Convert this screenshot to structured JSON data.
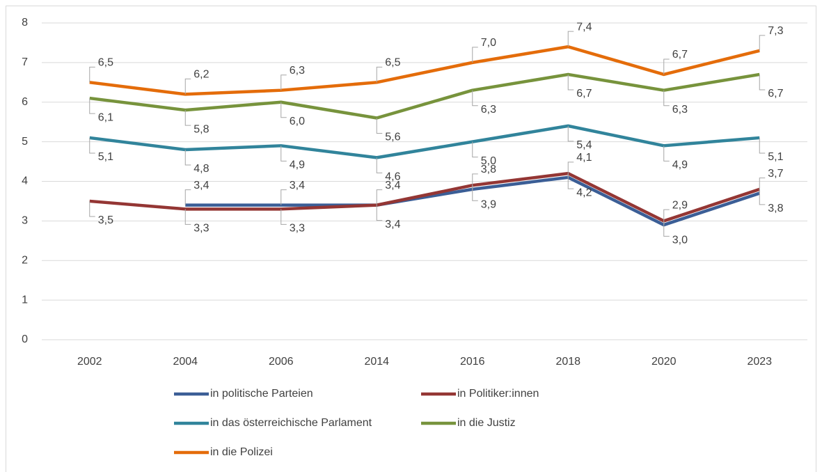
{
  "chart_data": {
    "type": "line",
    "categories": [
      "2002",
      "2004",
      "2006",
      "2014",
      "2016",
      "2018",
      "2020",
      "2023"
    ],
    "ylim": [
      0,
      8
    ],
    "yticks": [
      0,
      1,
      2,
      3,
      4,
      5,
      6,
      7,
      8
    ],
    "grid": true,
    "legend": "bottom",
    "series": [
      {
        "name": "in politische Parteien",
        "color": "#3b5e96",
        "values": [
          null,
          3.4,
          3.4,
          3.4,
          3.8,
          4.1,
          2.9,
          3.7
        ],
        "value_labels": [
          null,
          "3,4",
          "3,4",
          "3,4",
          "3,8",
          "4,1",
          "2,9",
          "3,7"
        ]
      },
      {
        "name": "in Politiker:innen",
        "color": "#943634",
        "values": [
          3.5,
          3.3,
          3.3,
          3.4,
          3.9,
          4.2,
          3.0,
          3.8
        ],
        "value_labels": [
          "3,5",
          "3,3",
          "3,3",
          "3,4",
          "3,9",
          "4,2",
          "3,0",
          "3,8"
        ]
      },
      {
        "name": "in das österreichische Parlament",
        "color": "#31849b",
        "values": [
          5.1,
          4.8,
          4.9,
          4.6,
          5.0,
          5.4,
          4.9,
          5.1
        ],
        "value_labels": [
          "5,1",
          "4,8",
          "4,9",
          "4,6",
          "5,0",
          "5,4",
          "4,9",
          "5,1"
        ]
      },
      {
        "name": "in die Justiz",
        "color": "#77933c",
        "values": [
          6.1,
          5.8,
          6.0,
          5.6,
          6.3,
          6.7,
          6.3,
          6.7
        ],
        "value_labels": [
          "6,1",
          "5,8",
          "6,0",
          "5,6",
          "6,3",
          "6,7",
          "6,3",
          "6,7"
        ]
      },
      {
        "name": "in die Polizei",
        "color": "#e46c0a",
        "values": [
          6.5,
          6.2,
          6.3,
          6.5,
          7.0,
          7.4,
          6.7,
          7.3
        ],
        "value_labels": [
          "6,5",
          "6,2",
          "6,3",
          "6,5",
          "7,0",
          "7,4",
          "6,7",
          "7,3"
        ]
      }
    ]
  }
}
